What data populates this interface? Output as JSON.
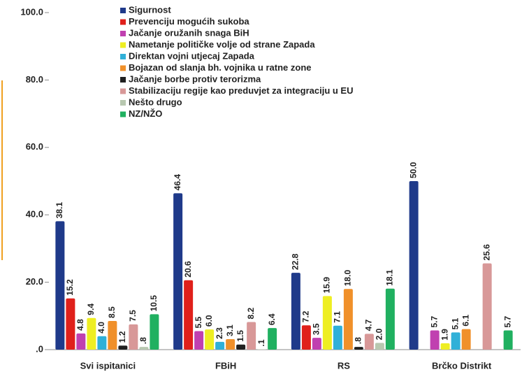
{
  "chart_data": {
    "type": "bar",
    "categories": [
      "Svi ispitanici",
      "FBiH",
      "RS",
      "Brčko Distrikt"
    ],
    "series": [
      {
        "name": "Sigurnost",
        "color": "#1f3a8a",
        "values": [
          38.1,
          46.4,
          22.8,
          50.0
        ],
        "value_labels": [
          "38.1",
          "46.4",
          "22.8",
          "50.0"
        ]
      },
      {
        "name": "Prevenciju mogućih sukoba",
        "color": "#e0201b",
        "values": [
          15.2,
          20.6,
          7.2,
          null
        ],
        "value_labels": [
          "15.2",
          "20.6",
          "7.2",
          null
        ]
      },
      {
        "name": "Jačanje oružanih snaga BiH",
        "color": "#c040b0",
        "values": [
          4.8,
          5.5,
          3.5,
          5.7
        ],
        "value_labels": [
          "4.8",
          "5.5",
          "3.5",
          "5.7"
        ]
      },
      {
        "name": "Nametanje političke volje od strane Zapada",
        "color": "#eeee22",
        "values": [
          9.4,
          6.0,
          15.9,
          1.9
        ],
        "value_labels": [
          "9.4",
          "6.0",
          "15.9",
          "1.9"
        ]
      },
      {
        "name": "Direktan vojni utjecaj Zapada",
        "color": "#30b0d8",
        "values": [
          4.0,
          2.3,
          7.1,
          5.1
        ],
        "value_labels": [
          "4.0",
          "2.3",
          "7.1",
          "5.1"
        ]
      },
      {
        "name": "Bojazan od slanja bh. vojnika u ratne zone",
        "color": "#f0902a",
        "values": [
          8.5,
          3.1,
          18.0,
          6.1
        ],
        "value_labels": [
          "8.5",
          "3.1",
          "18.0",
          "6.1"
        ]
      },
      {
        "name": "Jačanje borbe protiv terorizma",
        "color": "#202020",
        "values": [
          1.2,
          1.5,
          0.8,
          null
        ],
        "value_labels": [
          "1.2",
          "1.5",
          ".8",
          null
        ]
      },
      {
        "name": "Stabilizaciju regije kao preduvjet za integraciju u EU",
        "color": "#d89898",
        "values": [
          7.5,
          8.2,
          4.7,
          25.6
        ],
        "value_labels": [
          "7.5",
          "8.2",
          "4.7",
          "25.6"
        ]
      },
      {
        "name": "Nešto drugo",
        "color": "#b8c8b0",
        "values": [
          0.8,
          0.1,
          2.0,
          null
        ],
        "value_labels": [
          ".8",
          ".1",
          "2.0",
          null
        ]
      },
      {
        "name": "NZ/NŽO",
        "color": "#20b060",
        "values": [
          10.5,
          6.4,
          18.1,
          5.7
        ],
        "value_labels": [
          "10.5",
          "6.4",
          "18.1",
          "5.7"
        ]
      }
    ],
    "ylim": [
      0,
      100
    ],
    "yticks": [
      {
        "value": 0,
        "label": ".0"
      },
      {
        "value": 20,
        "label": "20.0"
      },
      {
        "value": 40,
        "label": "40.0"
      },
      {
        "value": 60,
        "label": "60.0"
      },
      {
        "value": 80,
        "label": "80.0"
      },
      {
        "value": 100,
        "label": "100.0"
      }
    ],
    "legend": "top"
  }
}
